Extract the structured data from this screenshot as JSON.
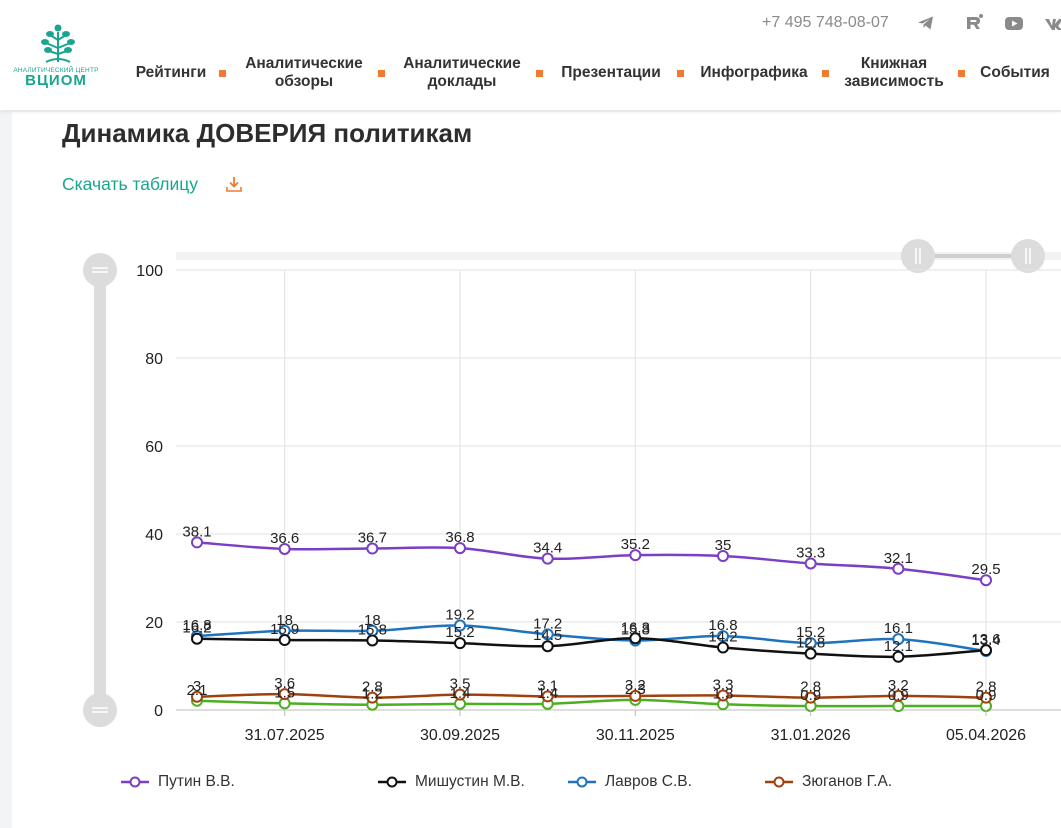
{
  "header": {
    "logo_caption": "АНАЛИТИЧЕСКИЙ ЦЕНТР",
    "logo_word": "ВЦИОМ",
    "phone": "+7 495 748-08-07",
    "nav": [
      {
        "label": "Рейтинги"
      },
      {
        "label": "Аналитические\nобзоры"
      },
      {
        "label": "Аналитические\nдоклады"
      },
      {
        "label": "Презентации"
      },
      {
        "label": "Инфографика"
      },
      {
        "label": "Книжная\nзависимость"
      },
      {
        "label": "События"
      }
    ],
    "social_icons": [
      "telegram-icon",
      "rutube-icon",
      "youtube-icon",
      "vk-icon"
    ],
    "accent_color": "#f07a30",
    "brand_color": "#19a58f"
  },
  "page": {
    "title": "Динамика ДОВЕРИЯ политикам",
    "download_label": "Скачать таблицу"
  },
  "chart_data": {
    "type": "line",
    "title": "",
    "xlabel": "",
    "ylabel": "",
    "ylim": [
      0,
      100
    ],
    "y_ticks": [
      0,
      20,
      40,
      60,
      80,
      100
    ],
    "x_tick_labels": [
      "31.07.2025",
      "30.09.2025",
      "30.11.2025",
      "31.01.2026",
      "05.04.2026"
    ],
    "grid": true,
    "legend_position": "bottom",
    "series": [
      {
        "name": "Путин В.В.",
        "color": "#7a3fc4",
        "values": [
          38.1,
          36.6,
          36.7,
          36.8,
          34.4,
          35.2,
          35,
          33.3,
          32.1,
          29.5
        ]
      },
      {
        "name": "Мишустин М.В.",
        "color": "#111111",
        "values": [
          16.2,
          15.9,
          15.8,
          15.2,
          14.5,
          16.3,
          14.2,
          12.8,
          12.1,
          13.6
        ]
      },
      {
        "name": "Лавров С.В.",
        "color": "#1e73be",
        "values": [
          16.8,
          18,
          18,
          19.2,
          17.2,
          15.8,
          16.8,
          15.2,
          16.1,
          13.4
        ]
      },
      {
        "name": "Зюганов Г.А.",
        "color": "#a0410d",
        "values": [
          3,
          3.6,
          2.8,
          3.5,
          3.1,
          3.2,
          3.3,
          2.8,
          3.2,
          2.8
        ]
      },
      {
        "name": "",
        "color": "#4caf20",
        "values": [
          2.1,
          1.5,
          1.2,
          1.4,
          1.4,
          2.3,
          1.3,
          0.9,
          0.9,
          0.9
        ]
      }
    ]
  }
}
